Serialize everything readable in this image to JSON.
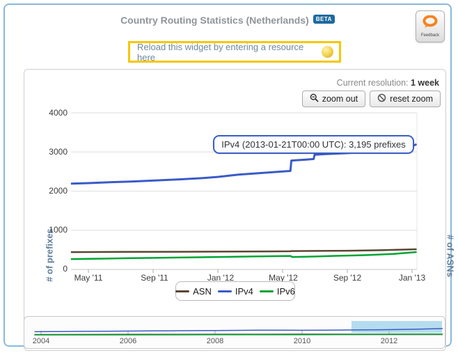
{
  "header": {
    "title": "Country Routing Statistics (Netherlands)",
    "beta_label": "BETA",
    "feedback_label": "Feedback"
  },
  "reload_notice": {
    "text": "Reload this widget by entering a resource here"
  },
  "toolbar": {
    "resolution_label": "Current resolution:",
    "resolution_value": "1 week",
    "zoom_out_label": "zoom out",
    "reset_zoom_label": "reset zoom"
  },
  "tooltip": {
    "text": "IPv4 (2013-01-21T00:00 UTC): 3,195 prefixes"
  },
  "legend": {
    "items": [
      {
        "label": "ASN",
        "color": "#5a4632"
      },
      {
        "label": "IPv4",
        "color": "#3a5bc7"
      },
      {
        "label": "IPv6",
        "color": "#00a431"
      }
    ]
  },
  "colors": {
    "outer_border": "#8ab9da",
    "beta_badge": "#1d6a9e",
    "reload_border": "#f6c700",
    "axis_title": "#5e7f9c",
    "selection_fill": "#b5dcee",
    "tooltip_border": "#3a5fc4",
    "feedback_orange": "#f6831d"
  },
  "chart_data": [
    {
      "type": "line",
      "title": "Country Routing Statistics (Netherlands)",
      "resolution": "1 week",
      "ylabel_left": "# of prefixes",
      "ylabel_right": "# of ASNs",
      "ylim": [
        0,
        4000
      ],
      "y_tick_labels": [
        "4000",
        "3000",
        "2000",
        "1000",
        "0"
      ],
      "x_ticks": [
        "May '11",
        "Sep '11",
        "Jan '12",
        "May '12",
        "Sep '12",
        "Jan '13"
      ],
      "grid": "horizontal",
      "legend_position": "bottom-center",
      "annotation": "IPv4 on 2013-01-21T00:00 UTC = 3,195 prefixes",
      "series": [
        {
          "name": "ASN",
          "color": "#5a4632",
          "width": 2.5,
          "x": [
            2011.24,
            2011.5,
            2011.75,
            2012.0,
            2012.25,
            2012.37,
            2012.375,
            2012.5,
            2012.67,
            2012.83,
            2013.02
          ],
          "values": [
            442,
            448,
            452,
            456,
            461,
            464,
            470,
            473,
            479,
            490,
            515
          ]
        },
        {
          "name": "IPv4",
          "color": "#3a5bc7",
          "width": 3,
          "x": [
            2011.24,
            2011.33,
            2011.45,
            2011.55,
            2011.67,
            2011.8,
            2011.92,
            2012.0,
            2012.1,
            2012.2,
            2012.3,
            2012.37,
            2012.375,
            2012.45,
            2012.49,
            2012.495,
            2012.55,
            2012.67,
            2012.75,
            2012.83,
            2012.92,
            2013.0,
            2013.02
          ],
          "values": [
            2190,
            2205,
            2230,
            2245,
            2270,
            2300,
            2335,
            2365,
            2420,
            2455,
            2490,
            2515,
            2780,
            2805,
            2820,
            2930,
            2945,
            2975,
            3000,
            3040,
            3090,
            3160,
            3195
          ]
        },
        {
          "name": "IPv6",
          "color": "#00a431",
          "width": 2.5,
          "x": [
            2011.24,
            2011.4,
            2011.55,
            2011.67,
            2011.83,
            2012.0,
            2012.17,
            2012.3,
            2012.37,
            2012.38,
            2012.5,
            2012.6,
            2012.75,
            2012.9,
            2013.02
          ],
          "values": [
            265,
            276,
            288,
            296,
            308,
            318,
            330,
            340,
            345,
            318,
            330,
            347,
            365,
            395,
            445
          ]
        }
      ]
    },
    {
      "type": "line",
      "role": "overview-brush",
      "x_ticks": [
        "2004",
        "2006",
        "2008",
        "2010",
        "2012"
      ],
      "selection": {
        "from": 2011.15,
        "to": 2013.2
      },
      "series": [
        {
          "name": "ASN",
          "color": "#5a4632",
          "width": 1,
          "x": [
            2003.85,
            2006,
            2008,
            2010,
            2012,
            2013.23
          ],
          "values": [
            300,
            350,
            380,
            420,
            480,
            530
          ]
        },
        {
          "name": "IPv4",
          "color": "#3a5bc7",
          "width": 1.5,
          "x": [
            2003.85,
            2004.5,
            2005,
            2005.5,
            2006,
            2006.5,
            2007,
            2007.5,
            2008,
            2008.5,
            2009,
            2009.5,
            2010,
            2010.5,
            2011,
            2011.4,
            2011.8,
            2012.2,
            2012.6,
            2013.0,
            2013.23
          ],
          "values": [
            1650,
            1750,
            1820,
            1880,
            1950,
            2030,
            2100,
            2180,
            2250,
            2320,
            2380,
            2420,
            2350,
            2420,
            2480,
            2550,
            2650,
            2750,
            2900,
            3100,
            3250
          ]
        },
        {
          "name": "IPv6",
          "color": "#00a431",
          "width": 1.5,
          "x": [
            2003.85,
            2008,
            2010,
            2011,
            2012,
            2013.23
          ],
          "values": [
            5,
            60,
            120,
            250,
            350,
            450
          ]
        }
      ]
    }
  ]
}
